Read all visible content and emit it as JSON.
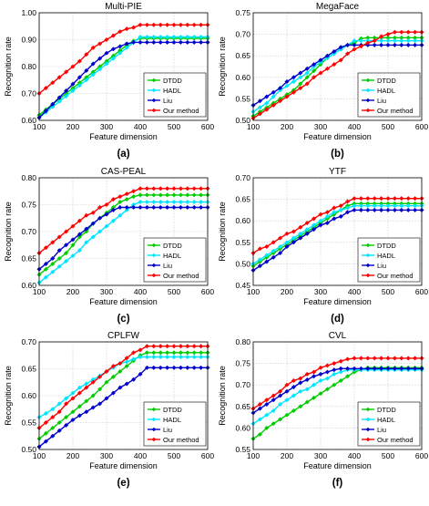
{
  "chart_data": [
    {
      "type": "line",
      "title": "Multi-PIE",
      "xlabel": "Feature dimension",
      "ylabel": "Recognition rate",
      "caption": "(a)",
      "xlim": [
        100,
        600
      ],
      "ylim": [
        0.6,
        1.0
      ],
      "xticks": [
        "100",
        "200",
        "300",
        "400",
        "500",
        "600"
      ],
      "yticks": [
        "0.60",
        "0.70",
        "0.80",
        "0.90",
        "1.00"
      ],
      "legend_position": "right",
      "grid": true,
      "x": [
        100,
        120,
        140,
        160,
        180,
        200,
        220,
        240,
        260,
        280,
        300,
        320,
        340,
        360,
        380,
        400,
        420,
        440,
        460,
        480,
        500,
        520,
        540,
        560,
        580,
        600
      ],
      "series": [
        {
          "name": "DTDD",
          "color": "#00cc00",
          "values": [
            0.62,
            0.64,
            0.66,
            0.68,
            0.7,
            0.72,
            0.74,
            0.76,
            0.78,
            0.8,
            0.82,
            0.84,
            0.86,
            0.88,
            0.895,
            0.905,
            0.905,
            0.905,
            0.905,
            0.905,
            0.905,
            0.905,
            0.905,
            0.905,
            0.905,
            0.905
          ]
        },
        {
          "name": "HADL",
          "color": "#00e5ff",
          "values": [
            0.61,
            0.63,
            0.65,
            0.67,
            0.69,
            0.71,
            0.73,
            0.75,
            0.77,
            0.79,
            0.81,
            0.83,
            0.85,
            0.87,
            0.89,
            0.91,
            0.91,
            0.91,
            0.91,
            0.91,
            0.91,
            0.91,
            0.91,
            0.91,
            0.91,
            0.91
          ]
        },
        {
          "name": "Liu",
          "color": "#0000cc",
          "values": [
            0.61,
            0.635,
            0.66,
            0.685,
            0.71,
            0.735,
            0.76,
            0.785,
            0.81,
            0.83,
            0.85,
            0.865,
            0.875,
            0.885,
            0.89,
            0.89,
            0.89,
            0.89,
            0.89,
            0.89,
            0.89,
            0.89,
            0.89,
            0.89,
            0.89,
            0.89
          ]
        },
        {
          "name": "Our method",
          "color": "#ff0000",
          "values": [
            0.7,
            0.72,
            0.74,
            0.76,
            0.78,
            0.8,
            0.82,
            0.845,
            0.87,
            0.885,
            0.9,
            0.915,
            0.93,
            0.94,
            0.945,
            0.955,
            0.955,
            0.955,
            0.955,
            0.955,
            0.955,
            0.955,
            0.955,
            0.955,
            0.955,
            0.955
          ]
        }
      ]
    },
    {
      "type": "line",
      "title": "MegaFace",
      "xlabel": "Feature dimension",
      "ylabel": "Recognition rate",
      "caption": "(b)",
      "xlim": [
        100,
        600
      ],
      "ylim": [
        0.5,
        0.75
      ],
      "xticks": [
        "100",
        "200",
        "300",
        "400",
        "500",
        "600"
      ],
      "yticks": [
        "0.50",
        "0.55",
        "0.60",
        "0.65",
        "0.70",
        "0.75"
      ],
      "legend_position": "right",
      "grid": true,
      "x": [
        100,
        120,
        140,
        160,
        180,
        200,
        220,
        240,
        260,
        280,
        300,
        320,
        340,
        360,
        380,
        400,
        420,
        440,
        460,
        480,
        500,
        520,
        540,
        560,
        580,
        600
      ],
      "series": [
        {
          "name": "DTDD",
          "color": "#00cc00",
          "values": [
            0.51,
            0.52,
            0.53,
            0.54,
            0.55,
            0.56,
            0.57,
            0.585,
            0.6,
            0.615,
            0.63,
            0.645,
            0.655,
            0.665,
            0.675,
            0.68,
            0.69,
            0.692,
            0.692,
            0.692,
            0.692,
            0.692,
            0.692,
            0.692,
            0.692,
            0.692
          ]
        },
        {
          "name": "HADL",
          "color": "#00e5ff",
          "values": [
            0.52,
            0.53,
            0.54,
            0.555,
            0.57,
            0.58,
            0.59,
            0.6,
            0.61,
            0.625,
            0.635,
            0.645,
            0.655,
            0.665,
            0.675,
            0.685,
            0.685,
            0.685,
            0.685,
            0.685,
            0.685,
            0.685,
            0.685,
            0.685,
            0.685,
            0.685
          ]
        },
        {
          "name": "Liu",
          "color": "#0000cc",
          "values": [
            0.535,
            0.545,
            0.555,
            0.565,
            0.575,
            0.59,
            0.6,
            0.61,
            0.62,
            0.63,
            0.64,
            0.65,
            0.66,
            0.67,
            0.675,
            0.675,
            0.675,
            0.675,
            0.675,
            0.675,
            0.675,
            0.675,
            0.675,
            0.675,
            0.675,
            0.675
          ]
        },
        {
          "name": "Our method",
          "color": "#ff0000",
          "values": [
            0.505,
            0.515,
            0.525,
            0.535,
            0.545,
            0.555,
            0.565,
            0.575,
            0.585,
            0.6,
            0.61,
            0.62,
            0.63,
            0.64,
            0.655,
            0.665,
            0.672,
            0.68,
            0.685,
            0.695,
            0.7,
            0.705,
            0.705,
            0.705,
            0.705,
            0.705
          ]
        }
      ]
    },
    {
      "type": "line",
      "title": "CAS-PEAL",
      "xlabel": "Feature dimension",
      "ylabel": "Recognition rate",
      "caption": "(c)",
      "xlim": [
        100,
        600
      ],
      "ylim": [
        0.6,
        0.8
      ],
      "xticks": [
        "100",
        "200",
        "300",
        "400",
        "500",
        "600"
      ],
      "yticks": [
        "0.60",
        "0.65",
        "0.70",
        "0.75",
        "0.80"
      ],
      "legend_position": "right",
      "grid": true,
      "x": [
        100,
        120,
        140,
        160,
        180,
        200,
        220,
        240,
        260,
        280,
        300,
        320,
        340,
        360,
        380,
        400,
        420,
        440,
        460,
        480,
        500,
        520,
        540,
        560,
        580,
        600
      ],
      "series": [
        {
          "name": "DTDD",
          "color": "#00cc00",
          "values": [
            0.62,
            0.63,
            0.64,
            0.65,
            0.66,
            0.675,
            0.69,
            0.7,
            0.715,
            0.725,
            0.735,
            0.745,
            0.755,
            0.76,
            0.765,
            0.768,
            0.768,
            0.768,
            0.768,
            0.768,
            0.768,
            0.768,
            0.768,
            0.768,
            0.768,
            0.768
          ]
        },
        {
          "name": "HADL",
          "color": "#00e5ff",
          "values": [
            0.605,
            0.615,
            0.625,
            0.635,
            0.645,
            0.655,
            0.665,
            0.68,
            0.69,
            0.7,
            0.71,
            0.72,
            0.73,
            0.74,
            0.75,
            0.755,
            0.755,
            0.755,
            0.755,
            0.755,
            0.755,
            0.755,
            0.755,
            0.755,
            0.755,
            0.755
          ]
        },
        {
          "name": "Liu",
          "color": "#0000cc",
          "values": [
            0.63,
            0.64,
            0.65,
            0.665,
            0.675,
            0.685,
            0.695,
            0.705,
            0.715,
            0.725,
            0.732,
            0.74,
            0.745,
            0.745,
            0.745,
            0.745,
            0.745,
            0.745,
            0.745,
            0.745,
            0.745,
            0.745,
            0.745,
            0.745,
            0.745,
            0.745
          ]
        },
        {
          "name": "Our method",
          "color": "#ff0000",
          "values": [
            0.66,
            0.67,
            0.68,
            0.69,
            0.7,
            0.71,
            0.72,
            0.73,
            0.735,
            0.745,
            0.75,
            0.76,
            0.765,
            0.77,
            0.775,
            0.78,
            0.78,
            0.78,
            0.78,
            0.78,
            0.78,
            0.78,
            0.78,
            0.78,
            0.78,
            0.78
          ]
        }
      ]
    },
    {
      "type": "line",
      "title": "YTF",
      "xlabel": "Feature dimension",
      "ylabel": "Recognition rate",
      "caption": "(d)",
      "xlim": [
        100,
        600
      ],
      "ylim": [
        0.45,
        0.7
      ],
      "xticks": [
        "100",
        "200",
        "300",
        "400",
        "500",
        "600"
      ],
      "yticks": [
        "0.45",
        "0.50",
        "0.55",
        "0.60",
        "0.65",
        "0.70"
      ],
      "legend_position": "right",
      "grid": true,
      "x": [
        100,
        120,
        140,
        160,
        180,
        200,
        220,
        240,
        260,
        280,
        300,
        320,
        340,
        360,
        380,
        400,
        420,
        440,
        460,
        480,
        500,
        520,
        540,
        560,
        580,
        600
      ],
      "series": [
        {
          "name": "DTDD",
          "color": "#00cc00",
          "values": [
            0.495,
            0.505,
            0.515,
            0.525,
            0.535,
            0.545,
            0.555,
            0.565,
            0.575,
            0.585,
            0.595,
            0.605,
            0.615,
            0.625,
            0.635,
            0.64,
            0.64,
            0.64,
            0.64,
            0.64,
            0.64,
            0.64,
            0.64,
            0.64,
            0.64,
            0.64
          ]
        },
        {
          "name": "HADL",
          "color": "#00e5ff",
          "values": [
            0.5,
            0.51,
            0.52,
            0.53,
            0.54,
            0.55,
            0.56,
            0.57,
            0.58,
            0.59,
            0.6,
            0.61,
            0.62,
            0.625,
            0.63,
            0.635,
            0.635,
            0.635,
            0.635,
            0.635,
            0.635,
            0.635,
            0.635,
            0.635,
            0.635,
            0.635
          ]
        },
        {
          "name": "Liu",
          "color": "#0000cc",
          "values": [
            0.485,
            0.495,
            0.505,
            0.515,
            0.525,
            0.54,
            0.55,
            0.56,
            0.57,
            0.58,
            0.59,
            0.595,
            0.605,
            0.61,
            0.62,
            0.625,
            0.625,
            0.625,
            0.625,
            0.625,
            0.625,
            0.625,
            0.625,
            0.625,
            0.625,
            0.625
          ]
        },
        {
          "name": "Our method",
          "color": "#ff0000",
          "values": [
            0.525,
            0.535,
            0.54,
            0.55,
            0.56,
            0.57,
            0.575,
            0.585,
            0.595,
            0.605,
            0.615,
            0.62,
            0.63,
            0.635,
            0.645,
            0.652,
            0.652,
            0.652,
            0.652,
            0.652,
            0.652,
            0.652,
            0.652,
            0.652,
            0.652,
            0.652
          ]
        }
      ]
    },
    {
      "type": "line",
      "title": "CPLFW",
      "xlabel": "Feature dimension",
      "ylabel": "Recognition rate",
      "caption": "(e)",
      "xlim": [
        100,
        600
      ],
      "ylim": [
        0.5,
        0.7
      ],
      "xticks": [
        "100",
        "200",
        "300",
        "400",
        "500",
        "600"
      ],
      "yticks": [
        "0.50",
        "0.55",
        "0.60",
        "0.65",
        "0.70"
      ],
      "legend_position": "right",
      "grid": true,
      "x": [
        100,
        120,
        140,
        160,
        180,
        200,
        220,
        240,
        260,
        280,
        300,
        320,
        340,
        360,
        380,
        400,
        420,
        440,
        460,
        480,
        500,
        520,
        540,
        560,
        580,
        600
      ],
      "series": [
        {
          "name": "DTDD",
          "color": "#00cc00",
          "values": [
            0.52,
            0.53,
            0.54,
            0.55,
            0.56,
            0.57,
            0.58,
            0.59,
            0.6,
            0.612,
            0.625,
            0.635,
            0.645,
            0.655,
            0.665,
            0.675,
            0.68,
            0.68,
            0.68,
            0.68,
            0.68,
            0.68,
            0.68,
            0.68,
            0.68,
            0.68
          ]
        },
        {
          "name": "HADL",
          "color": "#00e5ff",
          "values": [
            0.56,
            0.567,
            0.575,
            0.585,
            0.595,
            0.605,
            0.615,
            0.622,
            0.63,
            0.637,
            0.645,
            0.652,
            0.66,
            0.663,
            0.668,
            0.672,
            0.672,
            0.672,
            0.672,
            0.672,
            0.672,
            0.672,
            0.672,
            0.672,
            0.672,
            0.672
          ]
        },
        {
          "name": "Liu",
          "color": "#0000cc",
          "values": [
            0.505,
            0.515,
            0.525,
            0.535,
            0.545,
            0.555,
            0.563,
            0.57,
            0.578,
            0.585,
            0.595,
            0.605,
            0.615,
            0.622,
            0.63,
            0.64,
            0.652,
            0.652,
            0.652,
            0.652,
            0.652,
            0.652,
            0.652,
            0.652,
            0.652,
            0.652
          ]
        },
        {
          "name": "Our method",
          "color": "#ff0000",
          "values": [
            0.54,
            0.55,
            0.56,
            0.57,
            0.585,
            0.595,
            0.605,
            0.615,
            0.625,
            0.635,
            0.645,
            0.655,
            0.66,
            0.67,
            0.68,
            0.685,
            0.692,
            0.692,
            0.692,
            0.692,
            0.692,
            0.692,
            0.692,
            0.692,
            0.692,
            0.692
          ]
        }
      ]
    },
    {
      "type": "line",
      "title": "CVL",
      "xlabel": "Feature dimension",
      "ylabel": "Recognition rate",
      "caption": "(f)",
      "xlim": [
        100,
        600
      ],
      "ylim": [
        0.55,
        0.8
      ],
      "xticks": [
        "100",
        "200",
        "300",
        "400",
        "500",
        "600"
      ],
      "yticks": [
        "0.55",
        "0.60",
        "0.65",
        "0.70",
        "0.75",
        "0.80"
      ],
      "legend_position": "right",
      "grid": true,
      "x": [
        100,
        120,
        140,
        160,
        180,
        200,
        220,
        240,
        260,
        280,
        300,
        320,
        340,
        360,
        380,
        400,
        420,
        440,
        460,
        480,
        500,
        520,
        540,
        560,
        580,
        600
      ],
      "series": [
        {
          "name": "DTDD",
          "color": "#00cc00",
          "values": [
            0.575,
            0.585,
            0.6,
            0.61,
            0.62,
            0.63,
            0.64,
            0.65,
            0.66,
            0.67,
            0.68,
            0.69,
            0.7,
            0.71,
            0.72,
            0.73,
            0.735,
            0.74,
            0.74,
            0.74,
            0.74,
            0.74,
            0.74,
            0.74,
            0.74,
            0.74
          ]
        },
        {
          "name": "HADL",
          "color": "#00e5ff",
          "values": [
            0.61,
            0.62,
            0.63,
            0.64,
            0.655,
            0.665,
            0.675,
            0.685,
            0.69,
            0.7,
            0.71,
            0.715,
            0.725,
            0.73,
            0.735,
            0.735,
            0.735,
            0.735,
            0.735,
            0.735,
            0.735,
            0.735,
            0.735,
            0.735,
            0.735,
            0.735
          ]
        },
        {
          "name": "Liu",
          "color": "#0000cc",
          "values": [
            0.635,
            0.645,
            0.655,
            0.665,
            0.675,
            0.685,
            0.695,
            0.705,
            0.712,
            0.72,
            0.725,
            0.73,
            0.735,
            0.738,
            0.738,
            0.738,
            0.738,
            0.738,
            0.738,
            0.738,
            0.738,
            0.738,
            0.738,
            0.738,
            0.738,
            0.738
          ]
        },
        {
          "name": "Our method",
          "color": "#ff0000",
          "values": [
            0.645,
            0.655,
            0.665,
            0.675,
            0.685,
            0.7,
            0.71,
            0.715,
            0.725,
            0.73,
            0.74,
            0.745,
            0.75,
            0.755,
            0.76,
            0.762,
            0.762,
            0.762,
            0.762,
            0.762,
            0.762,
            0.762,
            0.762,
            0.762,
            0.762,
            0.762
          ]
        }
      ]
    }
  ]
}
